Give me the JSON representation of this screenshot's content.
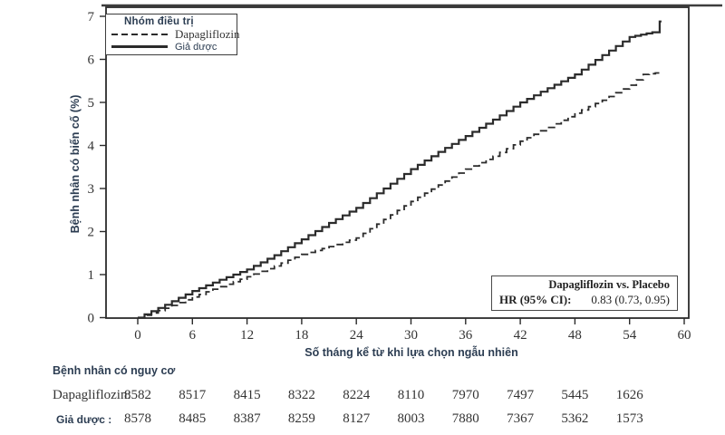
{
  "chart_data": {
    "type": "line",
    "subtype": "kaplan-meier-cumulative-incidence-step",
    "legend_title": "Nhóm điều trị",
    "legend_position": "top-left",
    "xlabel": "Số tháng kể từ khi lựa chọn ngẫu nhiên",
    "ylabel": "Bệnh nhân có biến cố (%)",
    "xlim": [
      0,
      60
    ],
    "ylim": [
      0,
      7
    ],
    "x_ticks": [
      0,
      6,
      12,
      18,
      24,
      30,
      36,
      42,
      48,
      54,
      60
    ],
    "y_ticks": [
      0,
      1,
      2,
      3,
      4,
      5,
      6,
      7
    ],
    "grid": false,
    "line_color": "#2b2b2b",
    "series": [
      {
        "name": "Dapagliflozin",
        "line": "dashed",
        "x": [
          0,
          3,
          6,
          9,
          12,
          15,
          18,
          21,
          24,
          27,
          30,
          33,
          36,
          39,
          42,
          45,
          48,
          51,
          54,
          55.5,
          57.5
        ],
        "y": [
          0,
          0.22,
          0.48,
          0.72,
          0.95,
          1.2,
          1.47,
          1.65,
          1.85,
          2.28,
          2.7,
          3.08,
          3.45,
          3.75,
          4.1,
          4.42,
          4.75,
          5.05,
          5.4,
          5.65,
          5.7
        ]
      },
      {
        "name": "Giả dược",
        "line": "solid",
        "x": [
          0,
          3,
          6,
          9,
          12,
          15,
          18,
          21,
          24,
          27,
          30,
          33,
          36,
          39,
          42,
          45,
          48,
          51,
          54,
          56.5,
          57.3,
          57.5
        ],
        "y": [
          0,
          0.3,
          0.62,
          0.88,
          1.12,
          1.45,
          1.82,
          2.2,
          2.55,
          3.0,
          3.45,
          3.85,
          4.22,
          4.6,
          5.0,
          5.33,
          5.65,
          6.1,
          6.52,
          6.63,
          6.88,
          6.88
        ]
      }
    ],
    "annotation": {
      "title": "Dapagliflozin vs. Placebo",
      "label": "HR (95% CI):",
      "value": "0.83 (0.73, 0.95)"
    },
    "risk_table": {
      "title": "Bệnh nhân có nguy cơ",
      "months": [
        0,
        6,
        12,
        18,
        24,
        30,
        36,
        42,
        48,
        54
      ],
      "rows": [
        {
          "label": "Dapagliflozin:",
          "counts": [
            8582,
            8517,
            8415,
            8322,
            8224,
            8110,
            7970,
            7497,
            5445,
            1626
          ]
        },
        {
          "label": "Giả dược  :",
          "counts": [
            8578,
            8485,
            8387,
            8259,
            8127,
            8003,
            7880,
            7367,
            5362,
            1573
          ]
        }
      ]
    }
  }
}
